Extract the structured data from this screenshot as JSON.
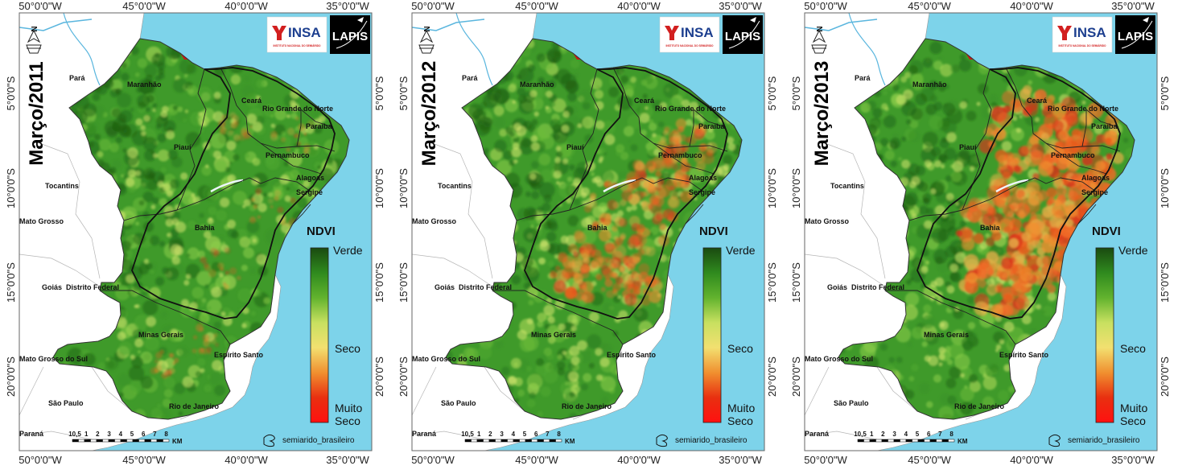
{
  "maps": [
    {
      "title": "Março/2011",
      "stress": "low",
      "dry_spots": [
        [
          0.62,
          0.26,
          0.03
        ],
        [
          0.78,
          0.28,
          0.04
        ],
        [
          0.72,
          0.45,
          0.05
        ],
        [
          0.58,
          0.58,
          0.04
        ],
        [
          0.52,
          0.75,
          0.03
        ],
        [
          0.4,
          0.8,
          0.03
        ]
      ]
    },
    {
      "title": "Março/2012",
      "stress": "medium",
      "dry_spots": [
        [
          0.62,
          0.47,
          0.08
        ],
        [
          0.55,
          0.55,
          0.07
        ],
        [
          0.7,
          0.4,
          0.06
        ],
        [
          0.78,
          0.3,
          0.05
        ],
        [
          0.48,
          0.6,
          0.05
        ],
        [
          0.62,
          0.62,
          0.05
        ]
      ]
    },
    {
      "title": "Março/2013",
      "stress": "high",
      "dry_spots": [
        [
          0.65,
          0.27,
          0.09
        ],
        [
          0.78,
          0.3,
          0.08
        ],
        [
          0.68,
          0.42,
          0.1
        ],
        [
          0.58,
          0.5,
          0.09
        ],
        [
          0.8,
          0.45,
          0.07
        ],
        [
          0.55,
          0.62,
          0.06
        ],
        [
          0.7,
          0.55,
          0.07
        ]
      ]
    }
  ],
  "axes": {
    "lon_top": [
      "50°0'0\"W",
      "45°0'0\"W",
      "40°0'0\"W",
      "35°0'0\"W"
    ],
    "lon_bottom": [
      "50°0'0\"W",
      "45°0'0\"W",
      "40°0'0\"W",
      "35°0'0\"W"
    ],
    "lat_left": [
      "5°0'0\"S",
      "10°0'0\"S",
      "15°0'0\"S",
      "20°0'0\"S"
    ],
    "lat_right": [
      "5°0'0\"S",
      "10°0'0\"S",
      "15°0'0\"S",
      "20°0'0\"S"
    ]
  },
  "states": {
    "para": "Pará",
    "maranhao": "Maranhão",
    "ceara": "Ceará",
    "rn": "Rio Grande do Norte",
    "paraiba": "Paraíba",
    "piaui": "Piauí",
    "pernambuco": "Pernambuco",
    "alagoas": "Alagoas",
    "sergipe": "Sergipe",
    "tocantins": "Tocantins",
    "mato_grosso": "Mato Grosso",
    "bahia": "Bahia",
    "goias": "Goiás",
    "df": "Distrito Federal",
    "minas": "Minas Gerais",
    "ms": "Mato Grosso do Sul",
    "es": "Espírito Santo",
    "sp": "São Paulo",
    "rj": "Rio de Janeiro",
    "parana": "Paraná"
  },
  "legend": {
    "title": "NDVI",
    "top": "Verde",
    "mid": "Seco",
    "bottom_1": "Muito",
    "bottom_2": "Seco",
    "colors": [
      "#1a4a10",
      "#2f8a1e",
      "#62b32e",
      "#c8e060",
      "#f2e070",
      "#f09030",
      "#e83010",
      "#ff1010"
    ]
  },
  "scale": {
    "ticks": [
      "10,5",
      "1",
      "2",
      "3",
      "4",
      "5",
      "6",
      "7",
      "8"
    ],
    "unit": "KM"
  },
  "boundary_legend": "semiarido_brasileiro",
  "logos": {
    "insa": "INSA",
    "insa_sub": "INSTITUTO NACIONAL DO SEMIÁRIDO",
    "lapis": "LAPIS"
  },
  "north": "N",
  "colors": {
    "ocean": "#7dd3ea",
    "land_outside": "#ffffff",
    "veg_base": "#3f9a2a"
  }
}
